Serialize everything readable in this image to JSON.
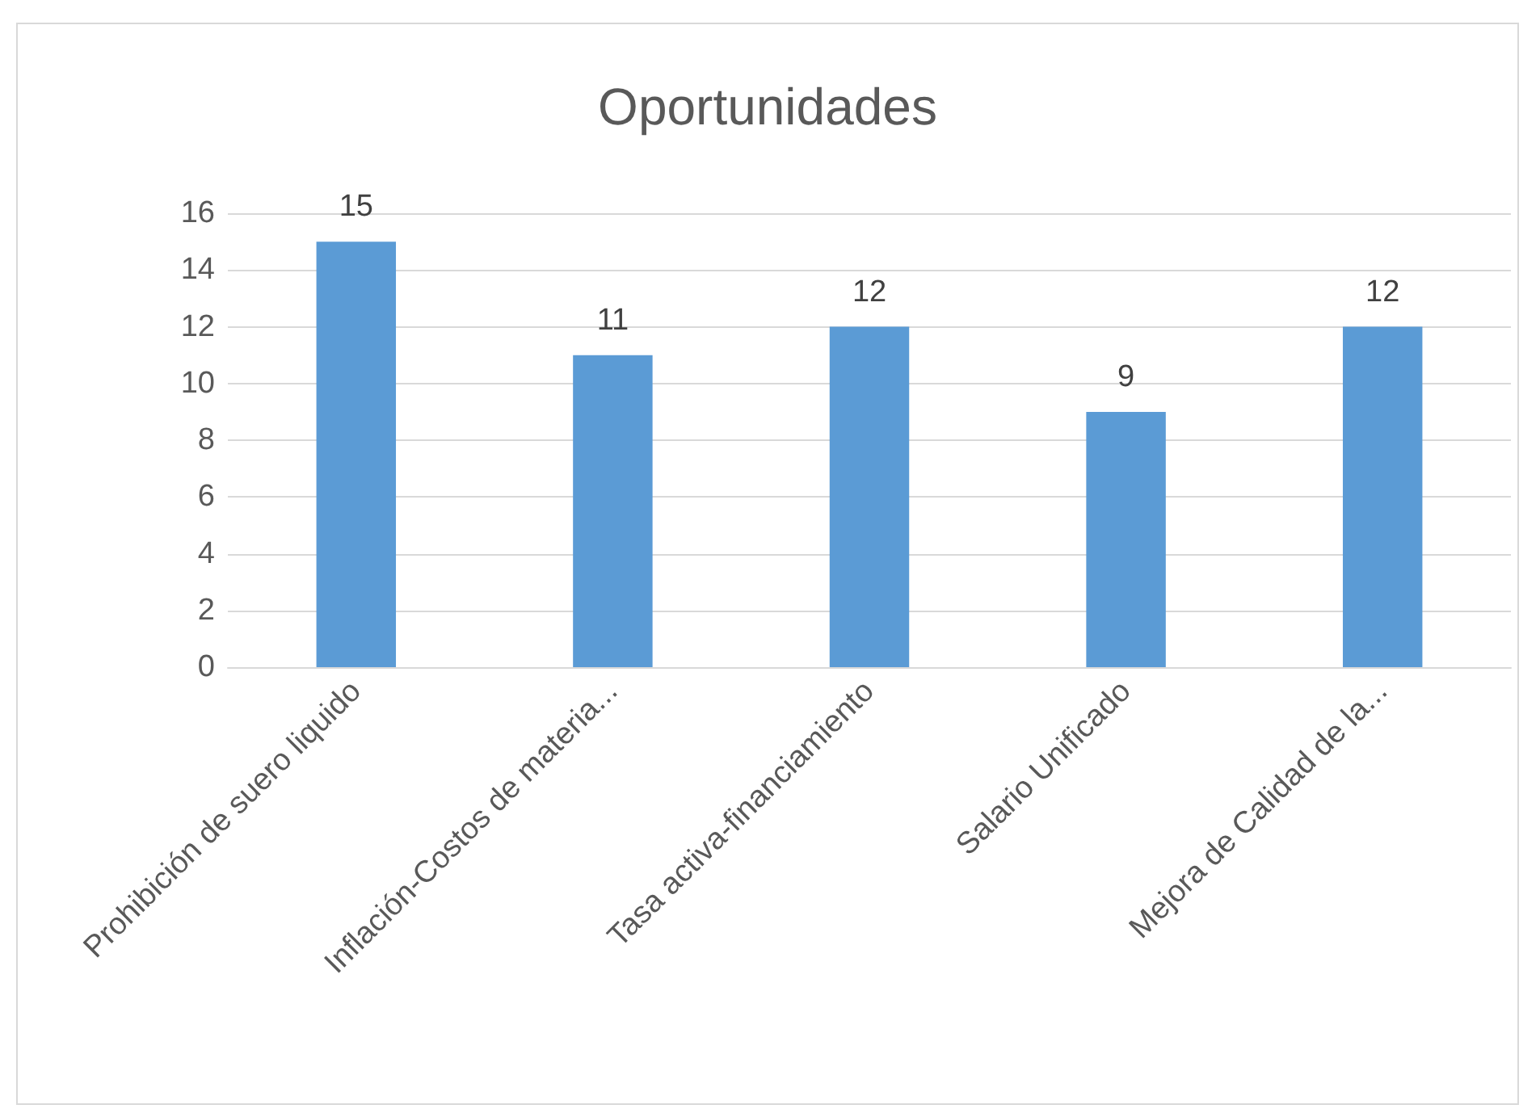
{
  "chart_data": {
    "type": "bar",
    "title": "Oportunidades",
    "categories": [
      "Prohibición de suero liquido",
      "Inflación-Costos de materia...",
      "Tasa activa-financiamiento",
      "Salario Unificado",
      "Mejora de Calidad de la..."
    ],
    "values": [
      15,
      11,
      12,
      9,
      12
    ],
    "color": "#5b9bd5",
    "ylim": [
      0,
      16
    ],
    "yticks": [
      0,
      2,
      4,
      6,
      8,
      10,
      12,
      14,
      16
    ],
    "grid": "y",
    "data_labels": true
  }
}
